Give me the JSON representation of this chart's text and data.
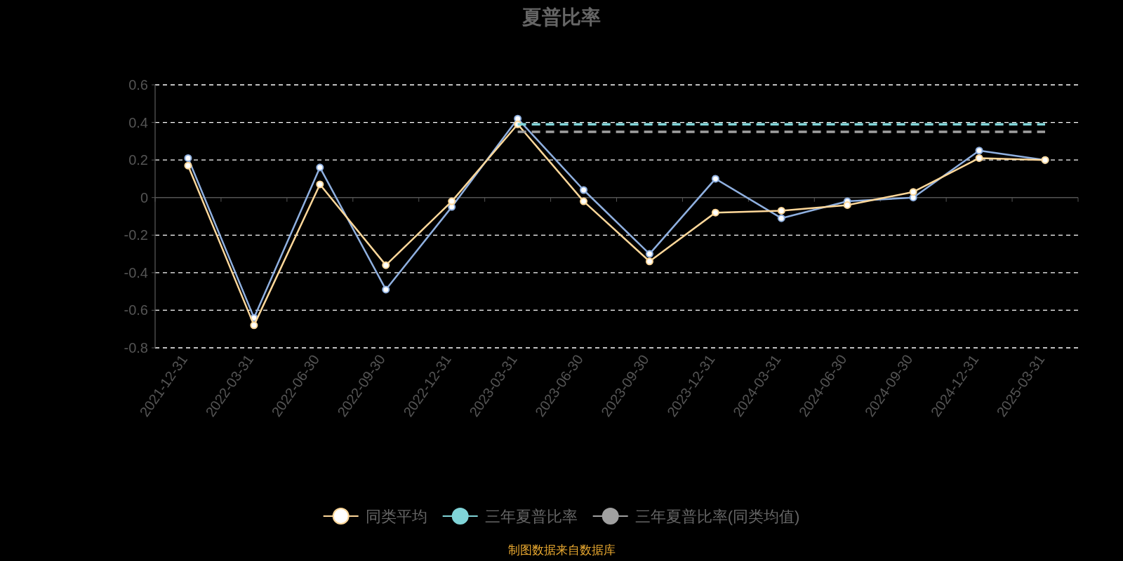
{
  "chart_data": {
    "type": "line",
    "title": "夏普比率",
    "categories": [
      "2021-12-31",
      "2022-03-31",
      "2022-06-30",
      "2022-09-30",
      "2022-12-31",
      "2023-03-31",
      "2023-06-30",
      "2023-09-30",
      "2023-12-31",
      "2024-03-31",
      "2024-06-30",
      "2024-09-30",
      "2024-12-31",
      "2025-03-31"
    ],
    "series": [
      {
        "color": "#8fb0e0",
        "values": [
          0.21,
          -0.64,
          0.16,
          -0.49,
          -0.05,
          0.42,
          0.04,
          -0.3,
          0.1,
          -0.11,
          -0.02,
          0.0,
          0.25,
          0.2
        ]
      },
      {
        "name": "同类平均",
        "color": "#ffd89a",
        "values": [
          0.17,
          -0.68,
          0.07,
          -0.36,
          -0.02,
          0.39,
          -0.02,
          -0.34,
          -0.08,
          -0.07,
          -0.04,
          0.03,
          0.21,
          0.2
        ]
      },
      {
        "name": "三年夏普比率",
        "color": "#80d4d8",
        "line_style": "dashed",
        "marker": "none",
        "values": [
          null,
          null,
          null,
          null,
          null,
          0.39,
          0.39,
          0.39,
          0.39,
          0.39,
          0.39,
          0.39,
          0.39,
          0.39
        ]
      },
      {
        "name": "三年夏普比率(同类均值)",
        "color": "#a0a0a0",
        "line_style": "dashed",
        "marker": "none",
        "values": [
          null,
          null,
          null,
          null,
          null,
          0.35,
          0.35,
          0.35,
          0.35,
          0.35,
          0.35,
          0.35,
          0.35,
          0.35
        ]
      }
    ],
    "ylim": [
      -0.8,
      0.6
    ],
    "yticks": [
      -0.8,
      -0.6,
      -0.4,
      -0.2,
      0,
      0.2,
      0.4,
      0.6
    ],
    "grid": "y",
    "legend": "bottom",
    "marker": "circle",
    "annotations": [
      "制图数据来自数据库"
    ]
  }
}
